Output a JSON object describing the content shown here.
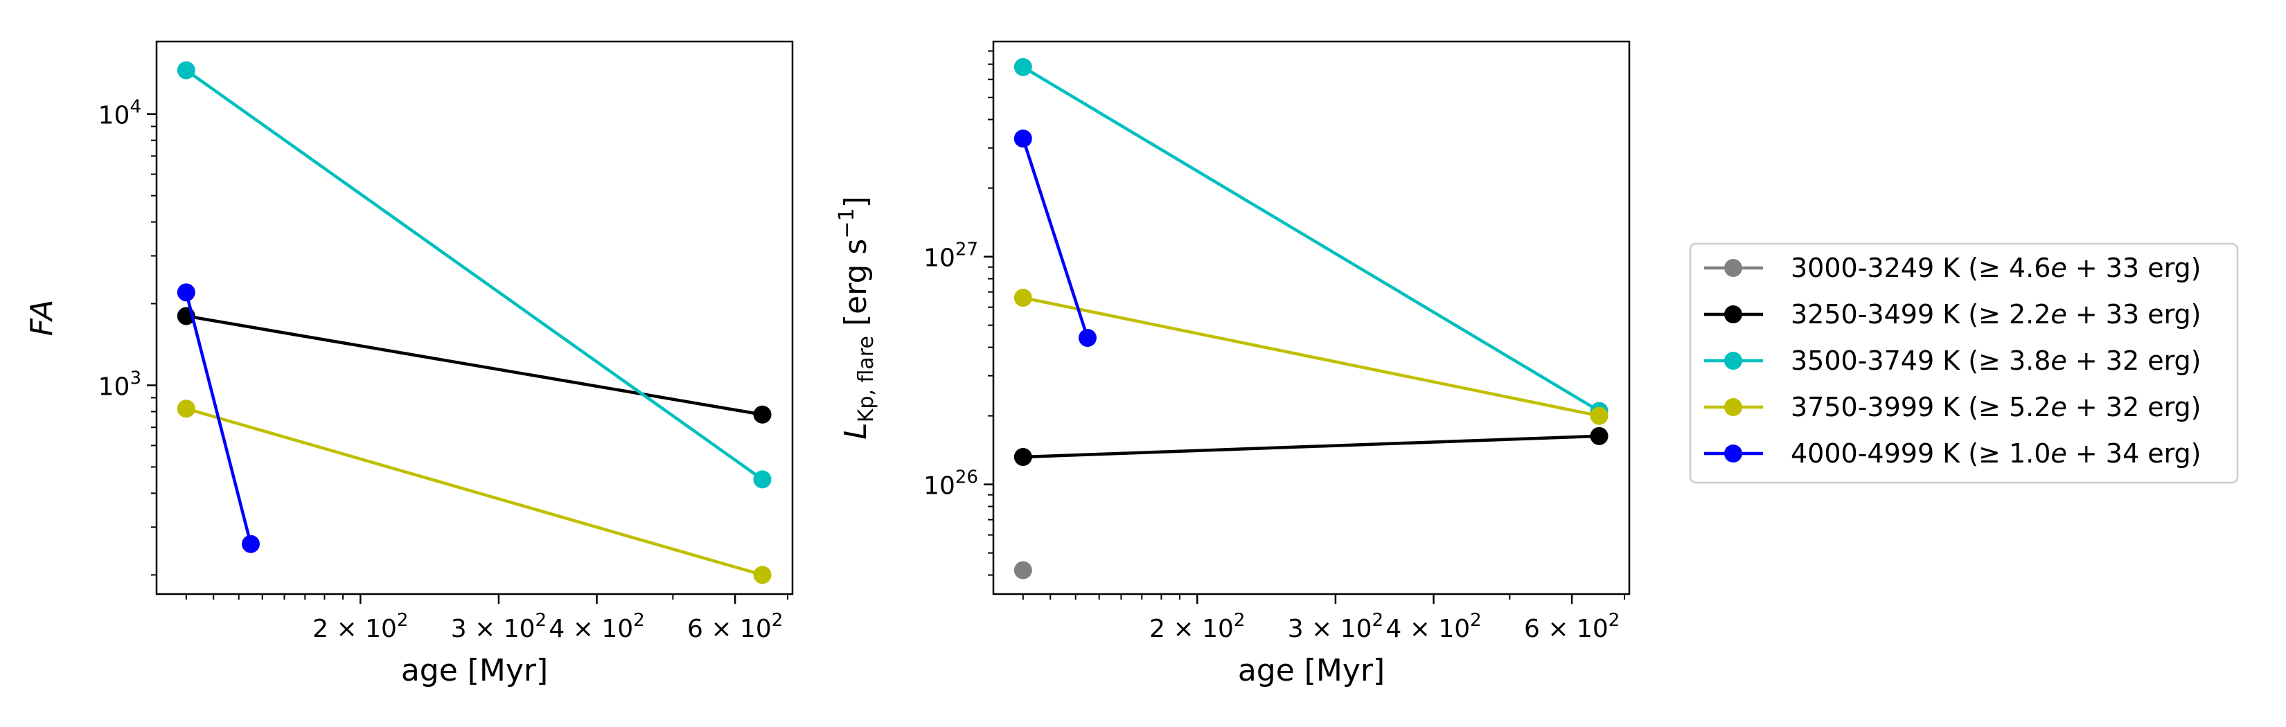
{
  "figure": {
    "background": "#ffffff"
  },
  "legend": {
    "placement": "right",
    "entries": [
      {
        "name": "3000-3249 K ($\\geq 4.6e+33$ erg)",
        "parts": [
          "3000-3249 K (",
          "≥ 4.6",
          "e",
          " + 33 erg)"
        ],
        "color": "#808080"
      },
      {
        "name": "3250-3499 K ($\\geq 2.2e+33$ erg)",
        "parts": [
          "3250-3499 K (",
          "≥ 2.2",
          "e",
          " + 33 erg)"
        ],
        "color": "#000000"
      },
      {
        "name": "3500-3749 K ($\\geq 3.8e+32$ erg)",
        "parts": [
          "3500-3749 K (",
          "≥ 3.8",
          "e",
          " + 32 erg)"
        ],
        "color": "#00bfbf"
      },
      {
        "name": "3750-3999 K ($\\geq 5.2e+32$ erg)",
        "parts": [
          "3750-3999 K (",
          "≥ 5.2",
          "e",
          " + 32 erg)"
        ],
        "color": "#bfbf00"
      },
      {
        "name": "4000-4999 K ($\\geq 1.0e+34$ erg)",
        "parts": [
          "4000-4999 K (",
          "≥ 1.0",
          "e",
          " + 34 erg)"
        ],
        "color": "#0000ff"
      }
    ]
  },
  "chart_data": [
    {
      "type": "line",
      "title": "",
      "xlabel": "age [Myr]",
      "ylabel": "FA",
      "xscale": "log",
      "yscale": "log",
      "xlim": [
        110,
        710
      ],
      "ylim": [
        170,
        18500
      ],
      "grid": false,
      "xticks": [
        {
          "value": 200,
          "mantissa": "2",
          "exponent": "2"
        },
        {
          "value": 300,
          "mantissa": "3",
          "exponent": "2"
        },
        {
          "value": 400,
          "mantissa": "4",
          "exponent": "2"
        },
        {
          "value": 600,
          "mantissa": "6",
          "exponent": "2"
        }
      ],
      "xminor": [
        120,
        130,
        140,
        150,
        160,
        170,
        180,
        190,
        500,
        700
      ],
      "yticks": [
        {
          "value": 1000,
          "base": "10",
          "exponent": "3"
        },
        {
          "value": 10000,
          "base": "10",
          "exponent": "4"
        }
      ],
      "yminor": [
        200,
        300,
        400,
        500,
        600,
        700,
        800,
        900,
        2000,
        3000,
        4000,
        5000,
        6000,
        7000,
        8000,
        9000
      ],
      "series": [
        {
          "name": "3250-3499 K ($\\geq 2.2e+33$ erg)",
          "color": "#000000",
          "x": [
            120,
            650
          ],
          "y": [
            1800,
            780
          ]
        },
        {
          "name": "3500-3749 K ($\\geq 3.8e+32$ erg)",
          "color": "#00bfbf",
          "x": [
            120,
            650
          ],
          "y": [
            14500,
            450
          ]
        },
        {
          "name": "3750-3999 K ($\\geq 5.2e+32$ erg)",
          "color": "#bfbf00",
          "x": [
            120,
            650
          ],
          "y": [
            820,
            200
          ]
        },
        {
          "name": "4000-4999 K ($\\geq 1.0e+34$ erg)",
          "color": "#0000ff",
          "x": [
            120,
            145
          ],
          "y": [
            2200,
            260
          ]
        }
      ]
    },
    {
      "type": "line",
      "title": "",
      "xlabel": "age [Myr]",
      "ylabel": "L_Kp,flare [erg s^-1]",
      "ylabel_parts": [
        "L",
        "Kp, flare",
        " [erg s",
        "−1",
        "]"
      ],
      "xscale": "log",
      "yscale": "log",
      "xlim": [
        110,
        710
      ],
      "ylim": [
        3.3e+25,
        8.8e+27
      ],
      "grid": false,
      "xticks": [
        {
          "value": 200,
          "mantissa": "2",
          "exponent": "2"
        },
        {
          "value": 300,
          "mantissa": "3",
          "exponent": "2"
        },
        {
          "value": 400,
          "mantissa": "4",
          "exponent": "2"
        },
        {
          "value": 600,
          "mantissa": "6",
          "exponent": "2"
        }
      ],
      "xminor": [
        120,
        130,
        140,
        150,
        160,
        170,
        180,
        190,
        500,
        700
      ],
      "yticks": [
        {
          "value": 1e+26,
          "base": "10",
          "exponent": "26"
        },
        {
          "value": 1e+27,
          "base": "10",
          "exponent": "27"
        }
      ],
      "yminor": [
        4e+25,
        5e+25,
        6e+25,
        7e+25,
        8e+25,
        9e+25,
        2e+26,
        3e+26,
        4e+26,
        5e+26,
        6e+26,
        7e+26,
        8e+26,
        9e+26,
        2e+27,
        3e+27,
        4e+27,
        5e+27,
        6e+27,
        7e+27,
        8e+27
      ],
      "series": [
        {
          "name": "3000-3249 K ($\\geq 4.6e+33$ erg)",
          "color": "#808080",
          "x": [
            120
          ],
          "y": [
            4.2e+25
          ]
        },
        {
          "name": "3250-3499 K ($\\geq 2.2e+33$ erg)",
          "color": "#000000",
          "x": [
            120,
            650
          ],
          "y": [
            1.32e+26,
            1.63e+26
          ]
        },
        {
          "name": "3500-3749 K ($\\geq 3.8e+32$ erg)",
          "color": "#00bfbf",
          "x": [
            120,
            650
          ],
          "y": [
            6.8e+27,
            2.1e+26
          ]
        },
        {
          "name": "3750-3999 K ($\\geq 5.2e+32$ erg)",
          "color": "#bfbf00",
          "x": [
            120,
            650
          ],
          "y": [
            6.6e+26,
            2e+26
          ]
        },
        {
          "name": "4000-4999 K ($\\geq 1.0e+34$ erg)",
          "color": "#0000ff",
          "x": [
            120,
            145
          ],
          "y": [
            3.3e+27,
            4.4e+26
          ]
        }
      ]
    }
  ]
}
